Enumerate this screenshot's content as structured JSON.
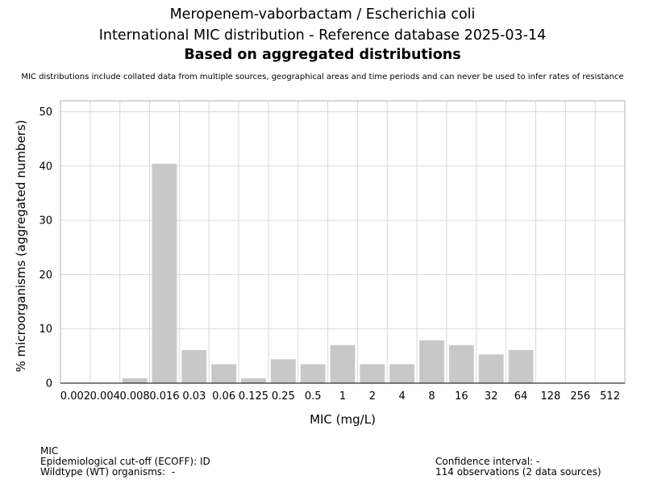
{
  "header": {
    "title": "Meropenem-vaborbactam / Escherichia coli",
    "subtitle": "International MIC distribution - Reference database 2025-03-14",
    "subtitle2": "Based on aggregated distributions",
    "disclaimer": "MIC distributions include collated data from multiple sources, geographical areas and time periods and can never be used to infer rates of resistance"
  },
  "chart_data": {
    "type": "bar",
    "title": "Meropenem-vaborbactam / Escherichia coli",
    "xlabel": "MIC (mg/L)",
    "ylabel": "% microorganisms (aggregated numbers)",
    "ylim": [
      0,
      52
    ],
    "yticks": [
      0,
      10,
      20,
      30,
      40,
      50
    ],
    "grid": true,
    "categories": [
      "0.002",
      "0.004",
      "0.008",
      "0.016",
      "0.03",
      "0.06",
      "0.125",
      "0.25",
      "0.5",
      "1",
      "2",
      "4",
      "8",
      "16",
      "32",
      "64",
      "128",
      "256",
      "512"
    ],
    "values": [
      0,
      0,
      0.9,
      40.4,
      6.1,
      3.5,
      0.9,
      4.4,
      3.5,
      7.0,
      3.5,
      3.5,
      7.9,
      7.0,
      5.3,
      6.1,
      0,
      0,
      0
    ],
    "bar_color": "#c8c8c8"
  },
  "footer": {
    "mic_label": "MIC",
    "ecoff": "Epidemiological cut-off (ECOFF): ID",
    "wildtype": "Wildtype (WT) organisms:  -",
    "confidence": "Confidence interval: -",
    "observations": "114 observations (2 data sources)"
  }
}
